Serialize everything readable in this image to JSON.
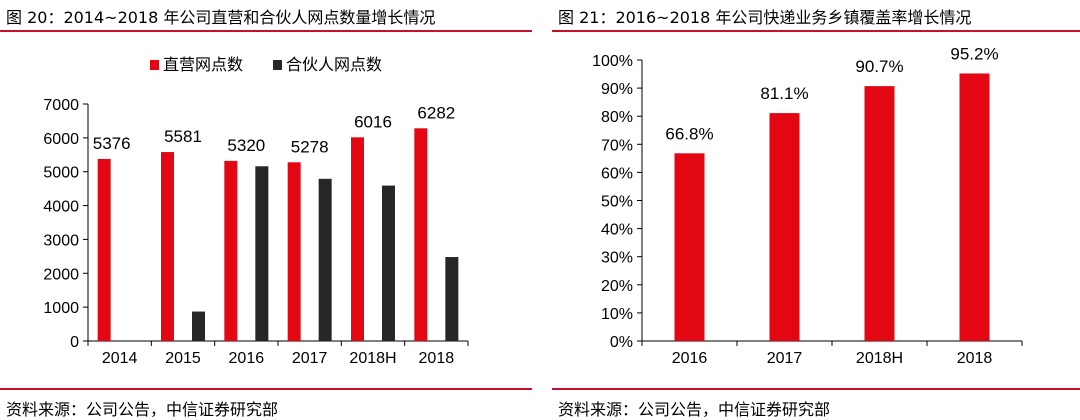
{
  "chart_data": [
    {
      "type": "bar",
      "title": "图 20：2014~2018 年公司直营和合伙人网点数量增长情况",
      "categories": [
        "2014",
        "2015",
        "2016",
        "2017",
        "2018H",
        "2018"
      ],
      "series": [
        {
          "name": "直营网点数",
          "values": [
            5376,
            5581,
            5320,
            5278,
            6016,
            6282
          ],
          "color": "#e30613",
          "labels": [
            "5376",
            "5581",
            "5320",
            "5278",
            "6016",
            "6282"
          ]
        },
        {
          "name": "合伙人网点数",
          "values": [
            null,
            870,
            5160,
            4790,
            4590,
            2480
          ],
          "color": "#262626"
        }
      ],
      "ylim": [
        0,
        7000
      ],
      "yticks": [
        "0",
        "1000",
        "2000",
        "3000",
        "4000",
        "5000",
        "6000",
        "7000"
      ],
      "legend": "top",
      "grid": false,
      "source": "资料来源：公司公告，中信证券研究部"
    },
    {
      "type": "bar",
      "title": "图 21：2016~2018 年公司快递业务乡镇覆盖率增长情况",
      "categories": [
        "2016",
        "2017",
        "2018H",
        "2018"
      ],
      "series": [
        {
          "values": [
            66.8,
            81.1,
            90.7,
            95.2
          ],
          "color": "#e30613",
          "labels": [
            "66.8%",
            "81.1%",
            "90.7%",
            "95.2%"
          ]
        }
      ],
      "ylim": [
        0,
        100
      ],
      "yticks": [
        "0%",
        "10%",
        "20%",
        "30%",
        "40%",
        "50%",
        "60%",
        "70%",
        "80%",
        "90%",
        "100%"
      ],
      "grid": false,
      "source": "资料来源：公司公告，中信证券研究部"
    }
  ]
}
